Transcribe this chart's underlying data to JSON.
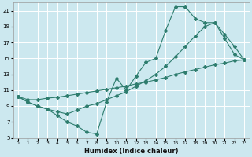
{
  "xlabel": "Humidex (Indice chaleur)",
  "bg_color": "#cce8ef",
  "grid_color": "#ffffff",
  "line_color": "#2e7d6e",
  "xlim": [
    -0.5,
    23.5
  ],
  "ylim": [
    5,
    22
  ],
  "xticks": [
    0,
    1,
    2,
    3,
    4,
    5,
    6,
    7,
    8,
    9,
    10,
    11,
    12,
    13,
    14,
    15,
    16,
    17,
    18,
    19,
    20,
    21,
    22,
    23
  ],
  "yticks": [
    5,
    7,
    9,
    11,
    13,
    15,
    17,
    19,
    21
  ],
  "line1_x": [
    0,
    1,
    2,
    3,
    4,
    5,
    6,
    7,
    8,
    9,
    10,
    11,
    12,
    13,
    14,
    15,
    16,
    17,
    18,
    19,
    20,
    21,
    22,
    23
  ],
  "line1_y": [
    10.2,
    9.5,
    9.0,
    8.6,
    7.8,
    7.0,
    6.5,
    5.7,
    5.5,
    9.5,
    12.5,
    11.0,
    12.8,
    14.5,
    15.0,
    18.5,
    21.5,
    21.5,
    20.0,
    19.5,
    19.5,
    17.5,
    15.5,
    14.8
  ],
  "line2_x": [
    0,
    1,
    2,
    3,
    4,
    5,
    6,
    7,
    8,
    9,
    10,
    11,
    12,
    13,
    14,
    15,
    16,
    17,
    18,
    19,
    20,
    21,
    22,
    23
  ],
  "line2_y": [
    10.2,
    9.8,
    9.8,
    10.0,
    10.1,
    10.3,
    10.5,
    10.7,
    10.9,
    11.1,
    11.3,
    11.5,
    11.8,
    12.0,
    12.3,
    12.6,
    13.0,
    13.3,
    13.6,
    13.9,
    14.2,
    14.4,
    14.7,
    14.8
  ],
  "line3_x": [
    0,
    1,
    2,
    3,
    4,
    5,
    6,
    7,
    8,
    9,
    10,
    11,
    12,
    13,
    14,
    15,
    16,
    17,
    18,
    19,
    20,
    21,
    22,
    23
  ],
  "line3_y": [
    10.2,
    9.5,
    9.0,
    8.6,
    8.3,
    8.0,
    8.5,
    9.0,
    9.3,
    9.8,
    10.3,
    10.8,
    11.5,
    12.2,
    13.0,
    14.0,
    15.2,
    16.5,
    17.8,
    19.0,
    19.5,
    18.0,
    16.5,
    14.8
  ]
}
